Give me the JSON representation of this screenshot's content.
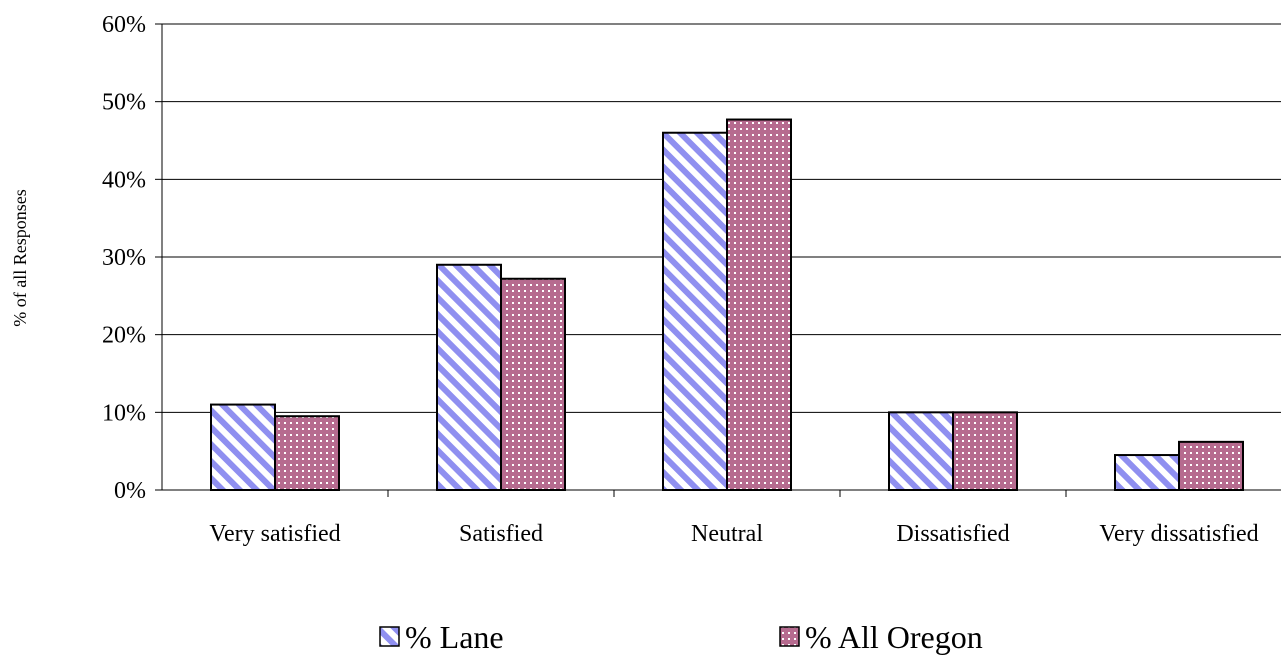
{
  "chart_data": {
    "type": "bar",
    "title": "",
    "xlabel": "",
    "ylabel": "% of all Responses",
    "ylim": [
      0,
      60
    ],
    "y_ticks": [
      "0%",
      "10%",
      "20%",
      "30%",
      "40%",
      "50%",
      "60%"
    ],
    "y_tick_values": [
      0,
      10,
      20,
      30,
      40,
      50,
      60
    ],
    "grid": true,
    "legend_position": "bottom",
    "categories": [
      "Very satisfied",
      "Satisfied",
      "Neutral",
      "Dissatisfied",
      "Very dissatisfied"
    ],
    "series": [
      {
        "name": "% Lane",
        "values": [
          11,
          29,
          46,
          10,
          4.5
        ],
        "color": "#8f8ff0",
        "pattern": "diagonal-stripes"
      },
      {
        "name": "% All Oregon",
        "values": [
          9.5,
          27.2,
          47.7,
          10,
          6.2
        ],
        "color": "#b66b8f",
        "pattern": "dotted-grid"
      }
    ]
  }
}
